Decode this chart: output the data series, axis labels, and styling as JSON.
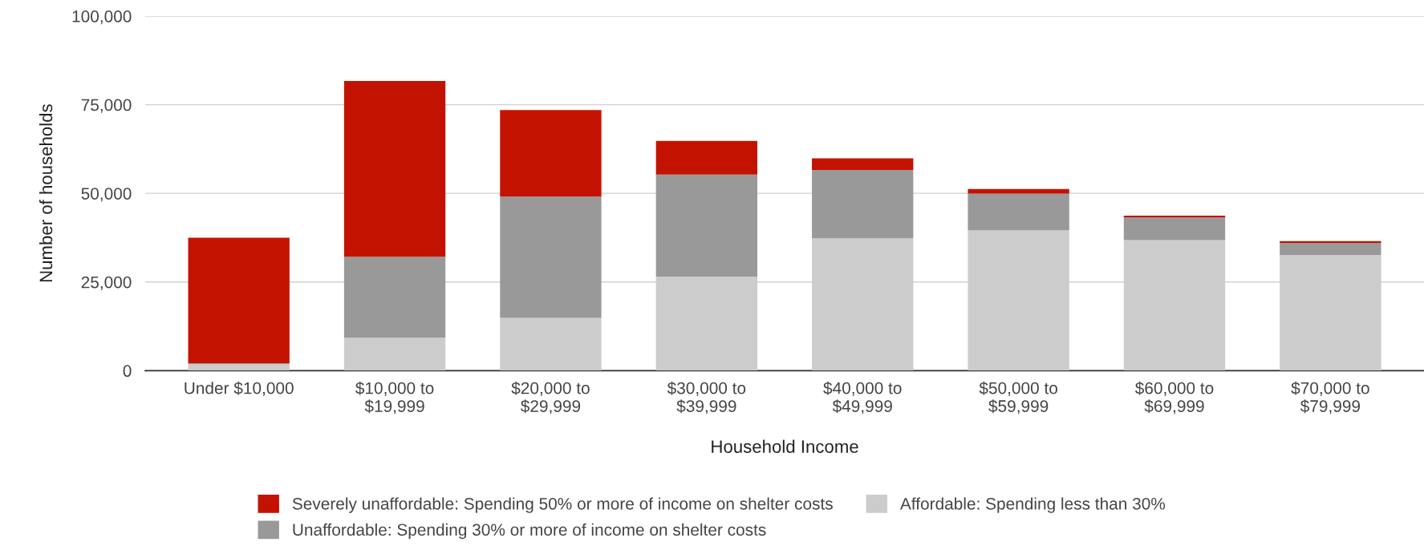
{
  "chart_data": {
    "type": "bar",
    "stacked": true,
    "xlabel": "Household Income",
    "ylabel": "Number of households",
    "categories": [
      "Under $10,000",
      "$10,000 to\n$19,999",
      "$20,000 to\n$29,999",
      "$30,000 to\n$39,999",
      "$40,000 to\n$49,999",
      "$50,000 to\n$59,999",
      "$60,000 to\n$69,999",
      "$70,000 to\n$79,999"
    ],
    "series": [
      {
        "name": "Affordable: Spending less than 30%",
        "color": "#cccccc",
        "values": [
          1800,
          9300,
          14900,
          26500,
          37300,
          39600,
          36800,
          32600
        ]
      },
      {
        "name": "Unaffordable: Spending 30% or more of income on shelter costs",
        "color": "#999999",
        "values": [
          300,
          22800,
          34200,
          28800,
          19300,
          10300,
          6400,
          3400
        ]
      },
      {
        "name": "Severely unaffordable: Spending 50% or more of income on shelter costs",
        "color": "#c41200",
        "values": [
          35400,
          49600,
          24400,
          9500,
          3300,
          1300,
          500,
          500
        ]
      }
    ],
    "ylim": [
      0,
      100000
    ],
    "yticks": [
      {
        "value": 0,
        "label": "0"
      },
      {
        "value": 25000,
        "label": "25,000"
      },
      {
        "value": 50000,
        "label": "50,000"
      },
      {
        "value": 75000,
        "label": "75,000"
      },
      {
        "value": 100000,
        "label": "100,000"
      }
    ],
    "grid": "y",
    "legend": "bottom"
  }
}
